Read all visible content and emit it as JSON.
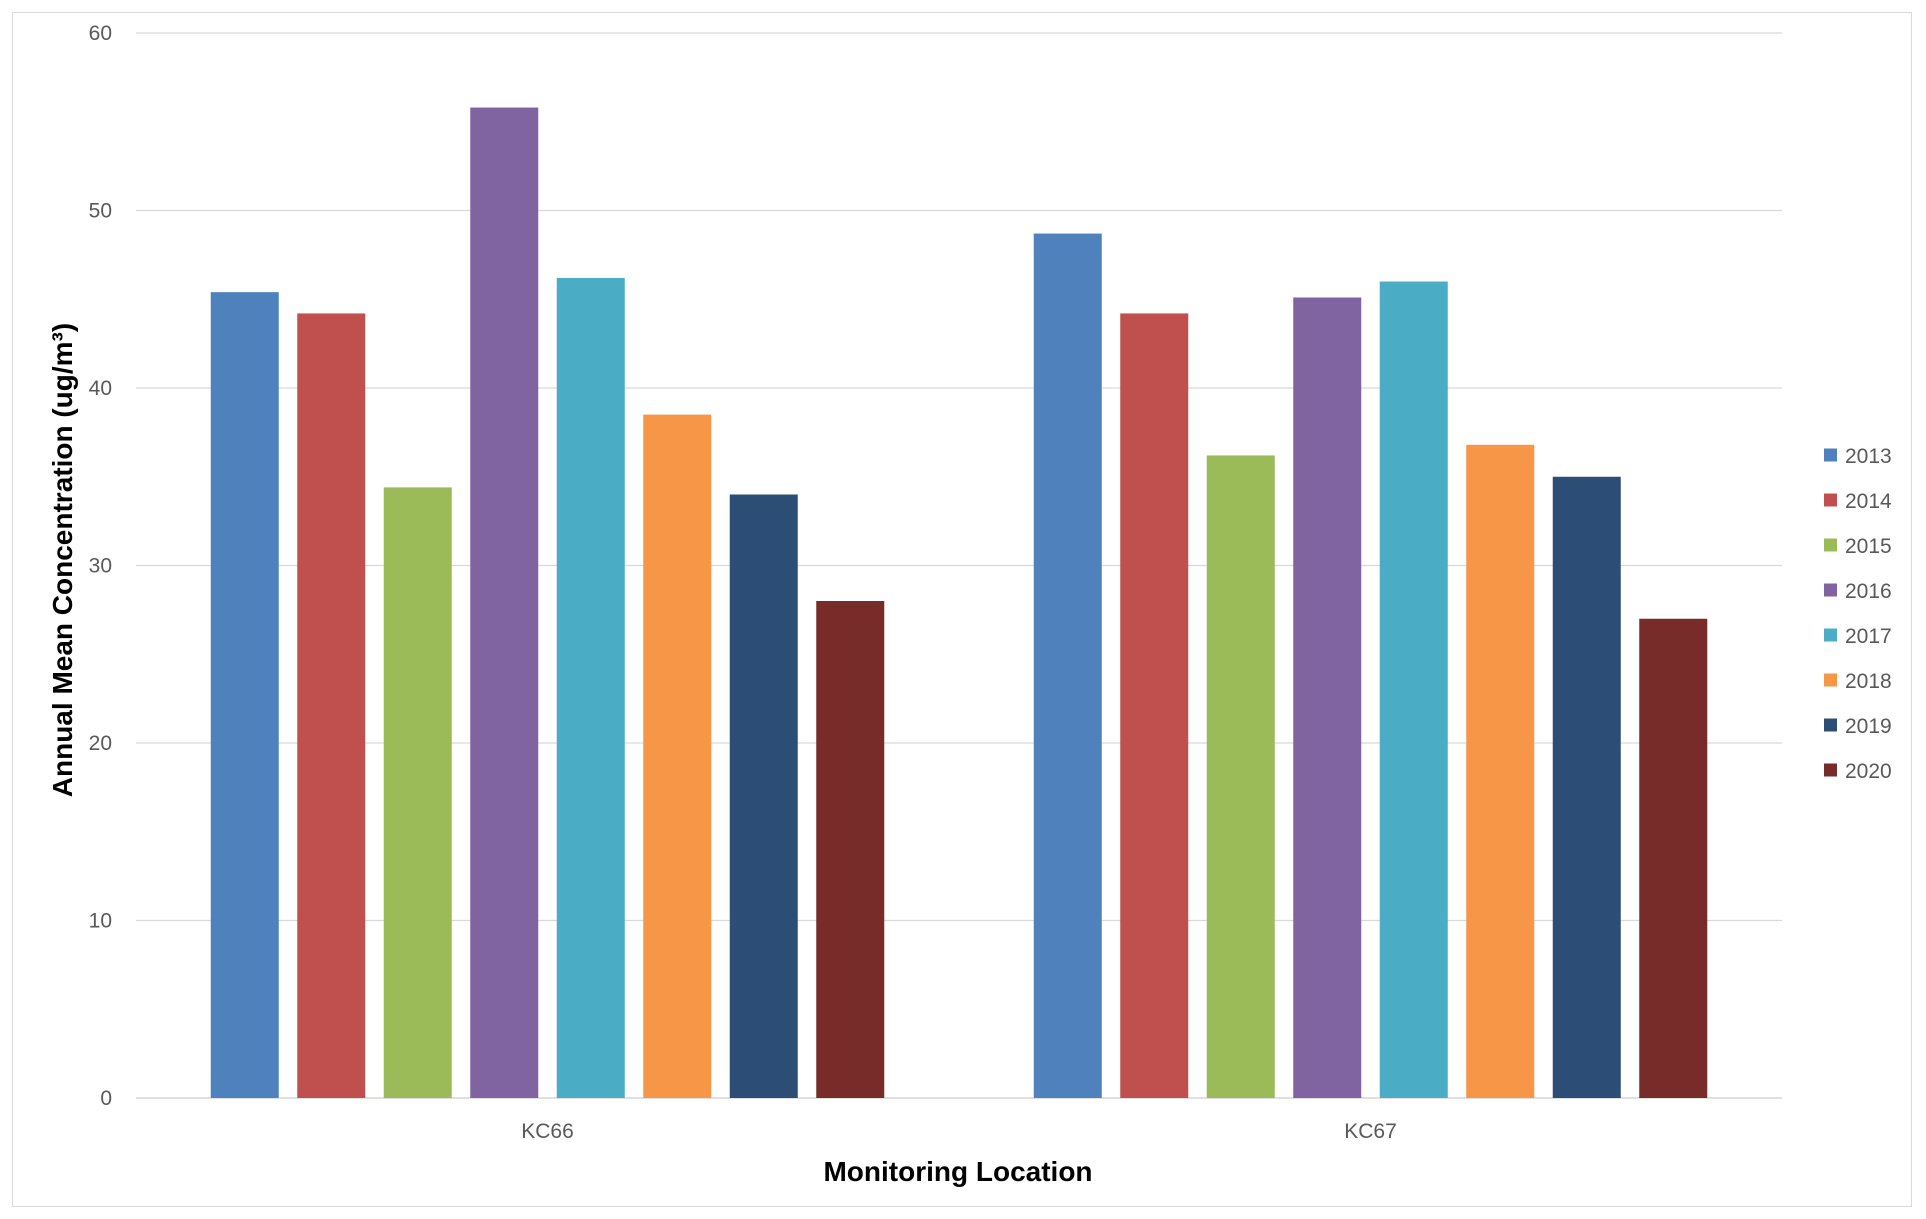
{
  "chart_data": {
    "type": "bar",
    "title": "",
    "xlabel": "Monitoring Location",
    "ylabel": "Annual Mean Concentration (ug/m³)",
    "ylim": [
      0,
      60
    ],
    "yticks": [
      0,
      10,
      20,
      30,
      40,
      50,
      60
    ],
    "grid": true,
    "legend_position": "right",
    "categories": [
      "KC66",
      "KC67"
    ],
    "series": [
      {
        "name": "2013",
        "color": "#4F81BD",
        "values": [
          45.4,
          48.7
        ]
      },
      {
        "name": "2014",
        "color": "#C0504D",
        "values": [
          44.2,
          44.2
        ]
      },
      {
        "name": "2015",
        "color": "#9BBB59",
        "values": [
          34.4,
          36.2
        ]
      },
      {
        "name": "2016",
        "color": "#8064A2",
        "values": [
          55.8,
          45.1
        ]
      },
      {
        "name": "2017",
        "color": "#4BACC6",
        "values": [
          46.2,
          46.0
        ]
      },
      {
        "name": "2018",
        "color": "#F79646",
        "values": [
          38.5,
          36.8
        ]
      },
      {
        "name": "2019",
        "color": "#2C4D75",
        "values": [
          34.0,
          35.0
        ]
      },
      {
        "name": "2020",
        "color": "#772C2A",
        "values": [
          28.0,
          27.0
        ]
      }
    ]
  }
}
